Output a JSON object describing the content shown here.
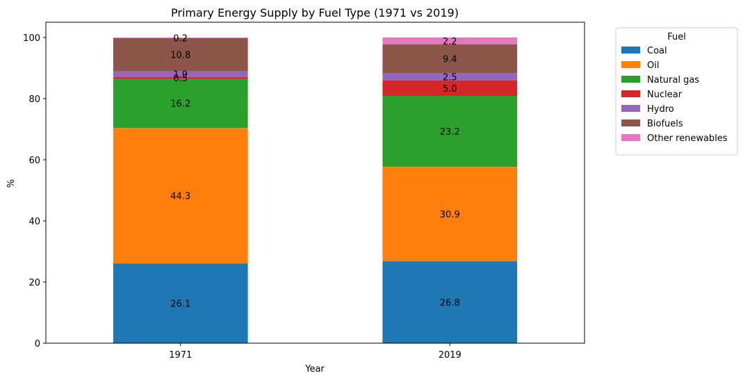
{
  "chart_data": {
    "type": "bar",
    "stacked": true,
    "title": "Primary Energy Supply by Fuel Type (1971 vs 2019)",
    "xlabel": "Year",
    "ylabel": "%",
    "categories": [
      "1971",
      "2019"
    ],
    "ylim": [
      0,
      105
    ],
    "yticks": [
      0,
      20,
      40,
      60,
      80,
      100
    ],
    "grid": false,
    "legend": {
      "title": "Fuel",
      "placement": "outside-top-right"
    },
    "series": [
      {
        "name": "Coal",
        "color": "#1f77b4",
        "values": [
          26.1,
          26.8
        ],
        "labels": [
          "26.1",
          "26.8"
        ]
      },
      {
        "name": "Oil",
        "color": "#ff7f0e",
        "values": [
          44.3,
          30.9
        ],
        "labels": [
          "44.3",
          "30.9"
        ]
      },
      {
        "name": "Natural gas",
        "color": "#2ca02c",
        "values": [
          16.2,
          23.2
        ],
        "labels": [
          "16.2",
          "23.2"
        ]
      },
      {
        "name": "Nuclear",
        "color": "#d62728",
        "values": [
          0.5,
          5.0
        ],
        "labels": [
          "0.5",
          "5.0"
        ]
      },
      {
        "name": "Hydro",
        "color": "#9467bd",
        "values": [
          1.9,
          2.5
        ],
        "labels": [
          "1.9",
          "2.5"
        ]
      },
      {
        "name": "Biofuels",
        "color": "#8c564b",
        "values": [
          10.8,
          9.4
        ],
        "labels": [
          "10.8",
          "9.4"
        ]
      },
      {
        "name": "Other renewables",
        "color": "#e377c2",
        "values": [
          0.2,
          2.2
        ],
        "labels": [
          "0.2",
          "2.2"
        ]
      }
    ]
  }
}
